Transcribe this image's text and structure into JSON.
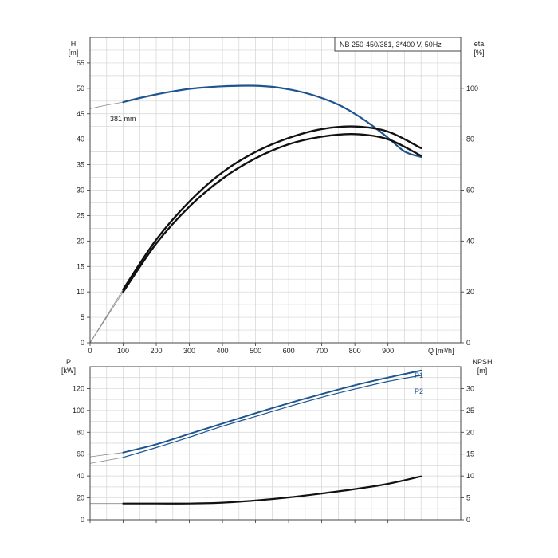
{
  "chart_data": [
    {
      "id": "top",
      "type": "line",
      "title": "NB 250-450/381, 3*400 V, 50Hz",
      "xlabel": "Q [m³/h]",
      "x_ticks": [
        "0",
        "100",
        "200",
        "300",
        "400",
        "500",
        "600",
        "700",
        "800",
        "900"
      ],
      "left_axis": {
        "label": "H",
        "unit": "[m]",
        "ticks": [
          "0",
          "5",
          "10",
          "15",
          "20",
          "25",
          "30",
          "35",
          "40",
          "45",
          "50",
          "55"
        ],
        "ylim": [
          0,
          60
        ]
      },
      "right_axis": {
        "label": "eta",
        "unit": "[%]",
        "ticks": [
          "0",
          "20",
          "40",
          "60",
          "80",
          "100"
        ],
        "ylim": [
          0,
          120
        ]
      },
      "grid": true,
      "series": [
        {
          "name": "381 mm",
          "role": "head",
          "axis": "left",
          "color": "#1d5590",
          "x": [
            100,
            150,
            200,
            250,
            300,
            350,
            400,
            450,
            500,
            550,
            600,
            650,
            700,
            750,
            800,
            850,
            900,
            950,
            1000
          ],
          "y": [
            47.3,
            48.1,
            48.8,
            49.4,
            49.9,
            50.2,
            50.4,
            50.5,
            50.5,
            50.3,
            49.8,
            49.1,
            48.1,
            46.8,
            45.0,
            42.8,
            40.3,
            37.6,
            36.5
          ],
          "extension": {
            "x": [
              0,
              50,
              100
            ],
            "y": [
              46.0,
              46.7,
              47.3
            ]
          }
        },
        {
          "role": "efficiency-upper",
          "axis": "right",
          "color": "#111111",
          "x": [
            100,
            200,
            300,
            400,
            500,
            600,
            700,
            800,
            900,
            1000
          ],
          "y": [
            21.0,
            40.5,
            55.5,
            67.0,
            75.0,
            80.5,
            84.0,
            85.0,
            83.0,
            76.5
          ],
          "extension": {
            "x": [
              0,
              50,
              100
            ],
            "y": [
              0,
              10.5,
              21.0
            ]
          }
        },
        {
          "role": "efficiency-lower",
          "axis": "right",
          "color": "#111111",
          "x": [
            100,
            200,
            300,
            400,
            500,
            600,
            700,
            800,
            900,
            1000
          ],
          "y": [
            20.0,
            39.0,
            53.5,
            64.5,
            72.5,
            78.0,
            81.0,
            82.0,
            80.0,
            73.5
          ],
          "extension": {
            "x": [
              0,
              50,
              100
            ],
            "y": [
              0,
              10.0,
              20.0
            ]
          }
        }
      ]
    },
    {
      "id": "bottom",
      "type": "line",
      "left_axis": {
        "label": "P",
        "unit": "[kW]",
        "ticks": [
          "0",
          "20",
          "40",
          "60",
          "80",
          "100",
          "120"
        ],
        "ylim": [
          0,
          140
        ]
      },
      "right_axis": {
        "label": "NPSH",
        "unit": "[m]",
        "ticks": [
          "0",
          "5",
          "10",
          "15",
          "20",
          "25",
          "30"
        ],
        "ylim": [
          0,
          35
        ]
      },
      "grid": true,
      "series": [
        {
          "name": "P1",
          "axis": "left",
          "color": "#1d5590",
          "x": [
            100,
            200,
            300,
            400,
            500,
            600,
            700,
            800,
            900,
            1000
          ],
          "y": [
            61.5,
            69.0,
            78.5,
            88.0,
            97.5,
            106.5,
            115.0,
            123.0,
            130.0,
            136.5
          ],
          "extension": {
            "x": [
              0,
              100
            ],
            "y": [
              57.5,
              61.5
            ]
          }
        },
        {
          "name": "P2",
          "axis": "left",
          "color": "#1d5590",
          "x": [
            100,
            200,
            300,
            400,
            500,
            600,
            700,
            800,
            900,
            1000
          ],
          "y": [
            57.0,
            66.0,
            75.5,
            85.5,
            94.5,
            103.5,
            112.0,
            119.5,
            126.5,
            132.0
          ],
          "extension": {
            "x": [
              0,
              100
            ],
            "y": [
              51.5,
              57.0
            ]
          }
        },
        {
          "role": "npsh",
          "axis": "right",
          "color": "#111111",
          "x": [
            100,
            200,
            300,
            400,
            500,
            600,
            700,
            800,
            900,
            1000
          ],
          "y": [
            3.7,
            3.7,
            3.7,
            3.9,
            4.4,
            5.1,
            6.0,
            7.0,
            8.2,
            9.9
          ],
          "extension": {
            "x": [
              0,
              100
            ],
            "y": [
              3.7,
              3.7
            ]
          }
        }
      ]
    }
  ]
}
